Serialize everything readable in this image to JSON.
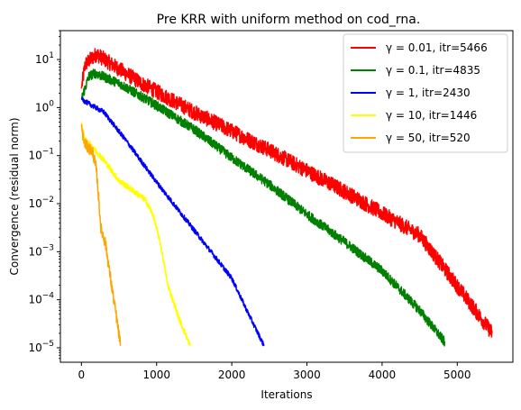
{
  "chart_data": {
    "type": "line",
    "title": "Pre KRR with uniform method on cod_rna.",
    "xlabel": "Iterations",
    "ylabel": "Convergence (residual norm)",
    "xlim": [
      -280,
      5740
    ],
    "ylim": [
      5e-06,
      40
    ],
    "yscale": "log",
    "xticks": [
      0,
      1000,
      2000,
      3000,
      4000,
      5000
    ],
    "xtick_labels": [
      "0",
      "1000",
      "2000",
      "3000",
      "4000",
      "5000"
    ],
    "yticks": [
      1e-05,
      0.0001,
      0.001,
      0.01,
      0.1,
      1,
      10
    ],
    "ytick_labels": [
      {
        "base": "10",
        "exp": "−5"
      },
      {
        "base": "10",
        "exp": "−4"
      },
      {
        "base": "10",
        "exp": "−3"
      },
      {
        "base": "10",
        "exp": "−2"
      },
      {
        "base": "10",
        "exp": "−1"
      },
      {
        "base": "10",
        "exp": "0"
      },
      {
        "base": "10",
        "exp": "1"
      }
    ],
    "grid": false,
    "legend_position": "top-right",
    "series": [
      {
        "name": "γ = 0.01, itr=5466",
        "gamma_label": "γ = 0.01, itr=5466",
        "color": "#ff0000",
        "noise": 0.16,
        "points": [
          [
            0,
            2.5
          ],
          [
            50,
            8
          ],
          [
            200,
            13
          ],
          [
            400,
            8
          ],
          [
            800,
            3.2
          ],
          [
            1500,
            0.8
          ],
          [
            2500,
            0.13
          ],
          [
            3500,
            0.018
          ],
          [
            4500,
            0.0022
          ],
          [
            5466,
            2e-05
          ]
        ]
      },
      {
        "name": "γ = 0.1, itr=4835",
        "color": "#008000",
        "noise": 0.1,
        "points": [
          [
            0,
            1.5
          ],
          [
            100,
            4.5
          ],
          [
            180,
            5.2
          ],
          [
            500,
            3.2
          ],
          [
            1000,
            1.1
          ],
          [
            1500,
            0.35
          ],
          [
            2000,
            0.09
          ],
          [
            2500,
            0.025
          ],
          [
            3000,
            0.006
          ],
          [
            3500,
            0.0016
          ],
          [
            4000,
            0.0004
          ],
          [
            4500,
            6e-05
          ],
          [
            4835,
            1.3e-05
          ]
        ]
      },
      {
        "name": "γ = 1, itr=2430",
        "color": "#0000ff",
        "noise": 0.05,
        "points": [
          [
            0,
            1.5
          ],
          [
            100,
            1.2
          ],
          [
            300,
            0.8
          ],
          [
            600,
            0.2
          ],
          [
            1000,
            0.028
          ],
          [
            1500,
            0.0028
          ],
          [
            2000,
            0.00028
          ],
          [
            2200,
            6e-05
          ],
          [
            2430,
            1.1e-05
          ]
        ]
      },
      {
        "name": "γ = 10, itr=1446",
        "color": "#ffff00",
        "noise": 0.06,
        "points": [
          [
            0,
            0.5
          ],
          [
            40,
            0.22
          ],
          [
            150,
            0.15
          ],
          [
            300,
            0.08
          ],
          [
            500,
            0.03
          ],
          [
            700,
            0.018
          ],
          [
            850,
            0.012
          ],
          [
            950,
            0.006
          ],
          [
            1050,
            0.0015
          ],
          [
            1150,
            0.0002
          ],
          [
            1300,
            4e-05
          ],
          [
            1446,
            1.1e-05
          ]
        ]
      },
      {
        "name": "γ = 50, itr=520",
        "color": "#ffa500",
        "noise": 0.12,
        "points": [
          [
            0,
            0.45
          ],
          [
            30,
            0.2
          ],
          [
            80,
            0.15
          ],
          [
            150,
            0.12
          ],
          [
            200,
            0.05
          ],
          [
            260,
            0.003
          ],
          [
            320,
            0.0015
          ],
          [
            400,
            0.0002
          ],
          [
            460,
            5e-05
          ],
          [
            520,
            1.1e-05
          ]
        ]
      }
    ]
  }
}
